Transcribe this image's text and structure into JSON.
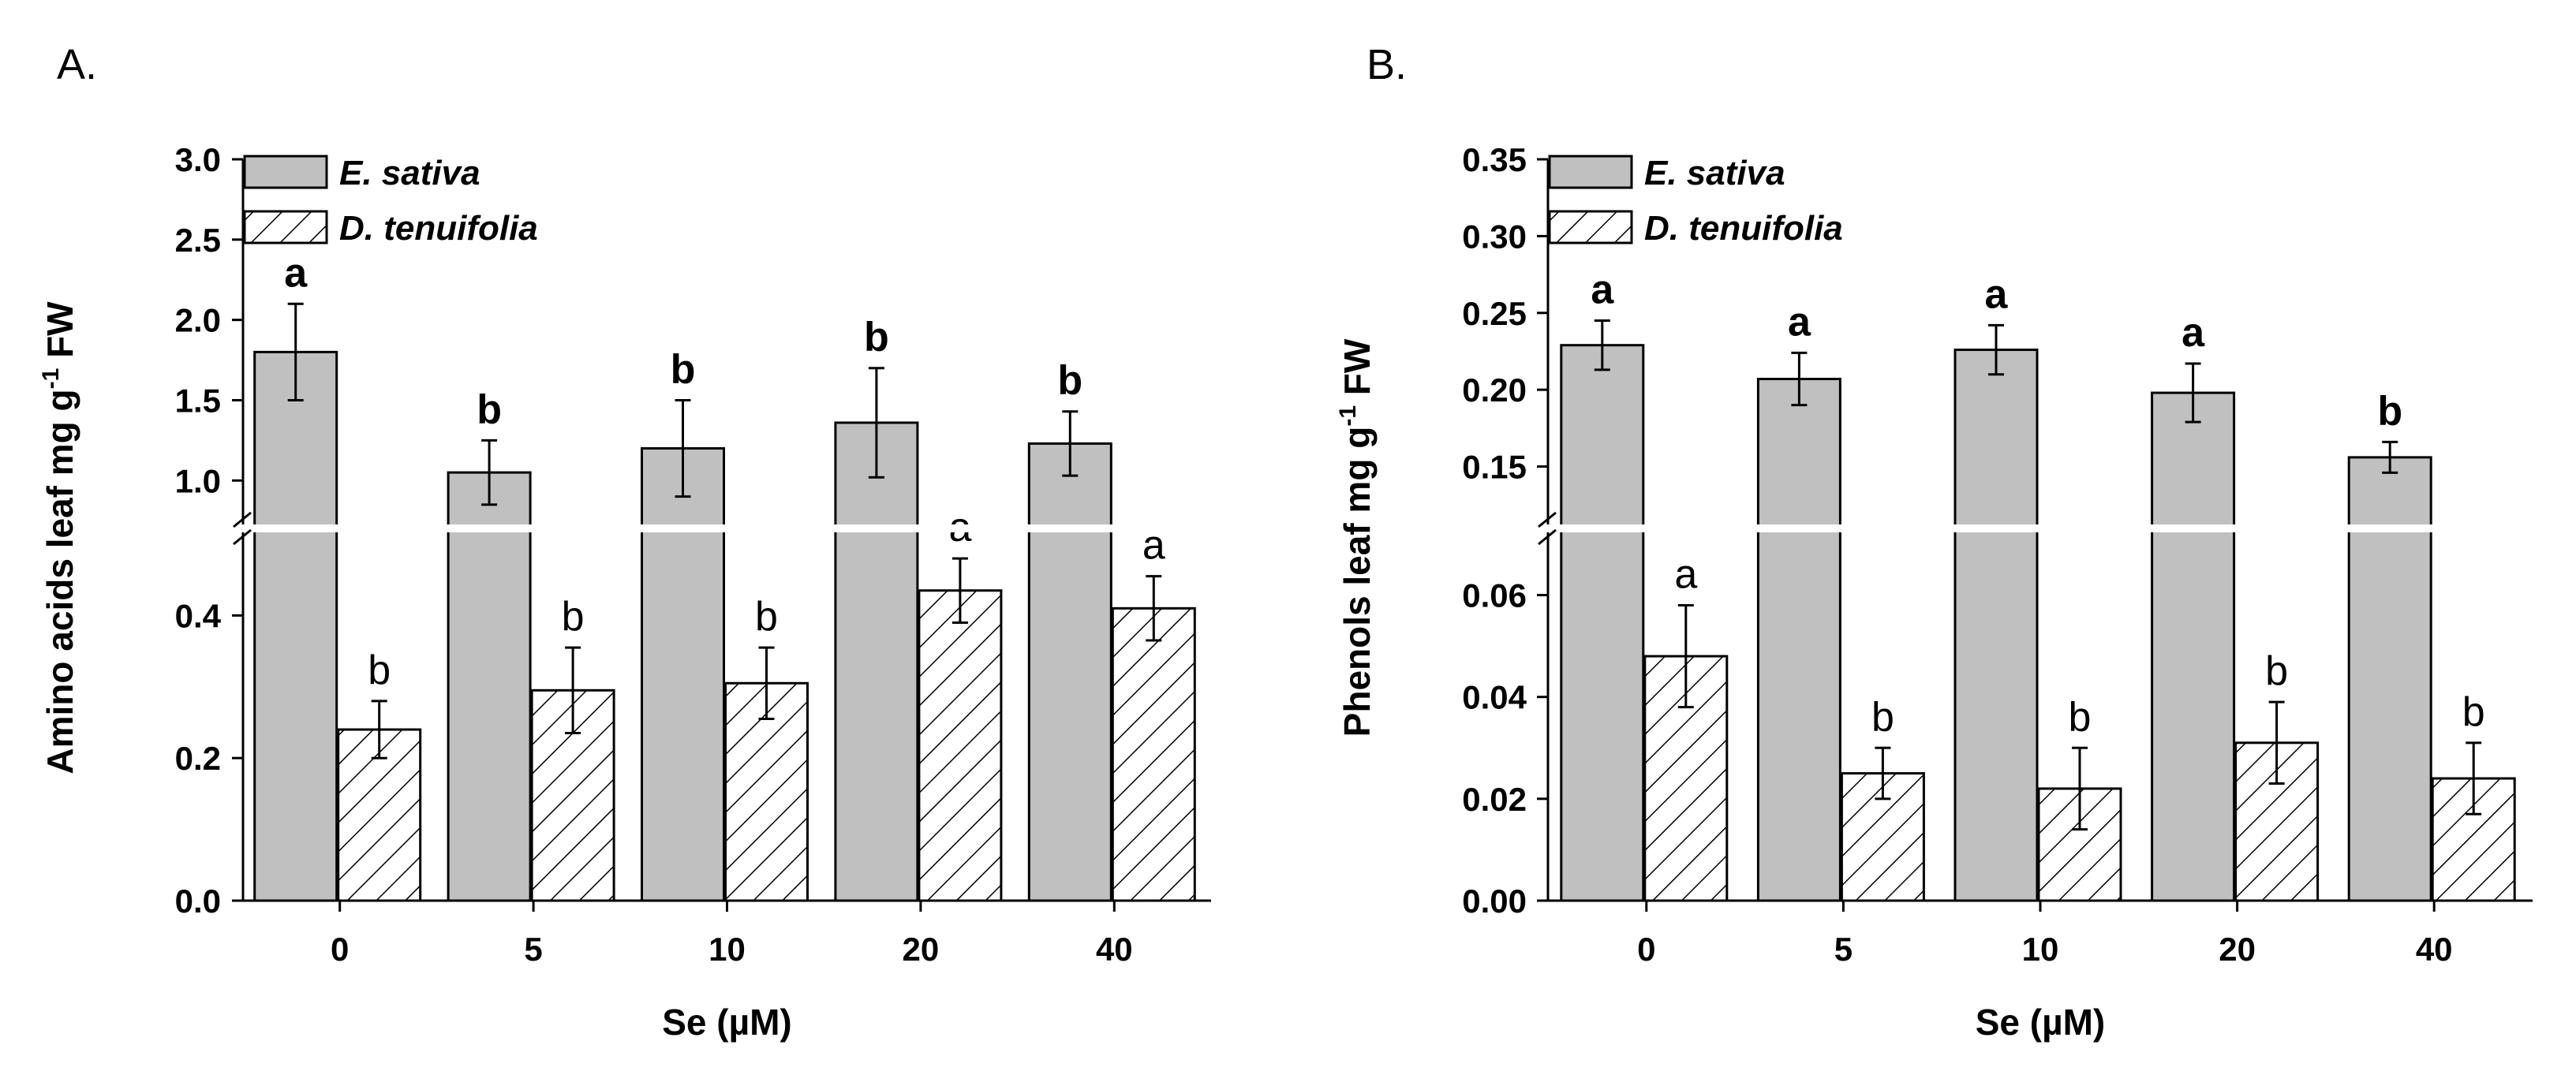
{
  "chart_data": [
    {
      "type": "bar",
      "panel_label": "A.",
      "categories": [
        "0",
        "5",
        "10",
        "20",
        "40"
      ],
      "xlabel": "Se (µM)",
      "ylabel_main": "Amino acids leaf mg g",
      "ylabel_sup": "-1",
      "ylabel_tail": " FW",
      "y_upper_range": [
        0.8,
        3.0
      ],
      "y_lower_range": [
        0.0,
        0.5
      ],
      "upper_ticks": [
        "1.0",
        "1.5",
        "2.0",
        "2.5",
        "3.0"
      ],
      "lower_ticks": [
        "0.0",
        "0.2",
        "0.4"
      ],
      "legend_position": "top-left",
      "series": [
        {
          "name": "E. sativa",
          "fill": "#c0c0c0",
          "values": [
            1.8,
            1.05,
            1.2,
            1.36,
            1.23
          ],
          "errors": [
            0.3,
            0.2,
            0.3,
            0.34,
            0.2
          ],
          "letters": [
            "a",
            "b",
            "b",
            "b",
            "b"
          ]
        },
        {
          "name": "D. tenuifolia",
          "fill": "hatch",
          "values": [
            0.24,
            0.295,
            0.305,
            0.435,
            0.41
          ],
          "errors": [
            0.04,
            0.06,
            0.05,
            0.045,
            0.045
          ],
          "letters": [
            "b",
            "b",
            "b",
            "a",
            "a"
          ]
        }
      ]
    },
    {
      "type": "bar",
      "panel_label": "B.",
      "categories": [
        "0",
        "5",
        "10",
        "20",
        "40"
      ],
      "xlabel": "Se (µM)",
      "ylabel_main": "Phenols leaf mg g",
      "ylabel_sup": "-1",
      "ylabel_tail": " FW",
      "y_upper_range": [
        0.12,
        0.35
      ],
      "y_lower_range": [
        0.0,
        0.07
      ],
      "upper_ticks": [
        "0.15",
        "0.20",
        "0.25",
        "0.30",
        "0.35"
      ],
      "lower_ticks": [
        "0.00",
        "0.02",
        "0.04",
        "0.06"
      ],
      "legend_position": "top-left",
      "series": [
        {
          "name": "E. sativa",
          "fill": "#c0c0c0",
          "values": [
            0.229,
            0.207,
            0.226,
            0.198,
            0.156
          ],
          "errors": [
            0.016,
            0.017,
            0.016,
            0.019,
            0.01
          ],
          "letters": [
            "a",
            "a",
            "a",
            "a",
            "b"
          ]
        },
        {
          "name": "D. tenuifolia",
          "fill": "hatch",
          "values": [
            0.048,
            0.025,
            0.022,
            0.031,
            0.024
          ],
          "errors": [
            0.01,
            0.005,
            0.008,
            0.008,
            0.007
          ],
          "letters": [
            "a",
            "b",
            "b",
            "b",
            "b"
          ]
        }
      ]
    }
  ]
}
